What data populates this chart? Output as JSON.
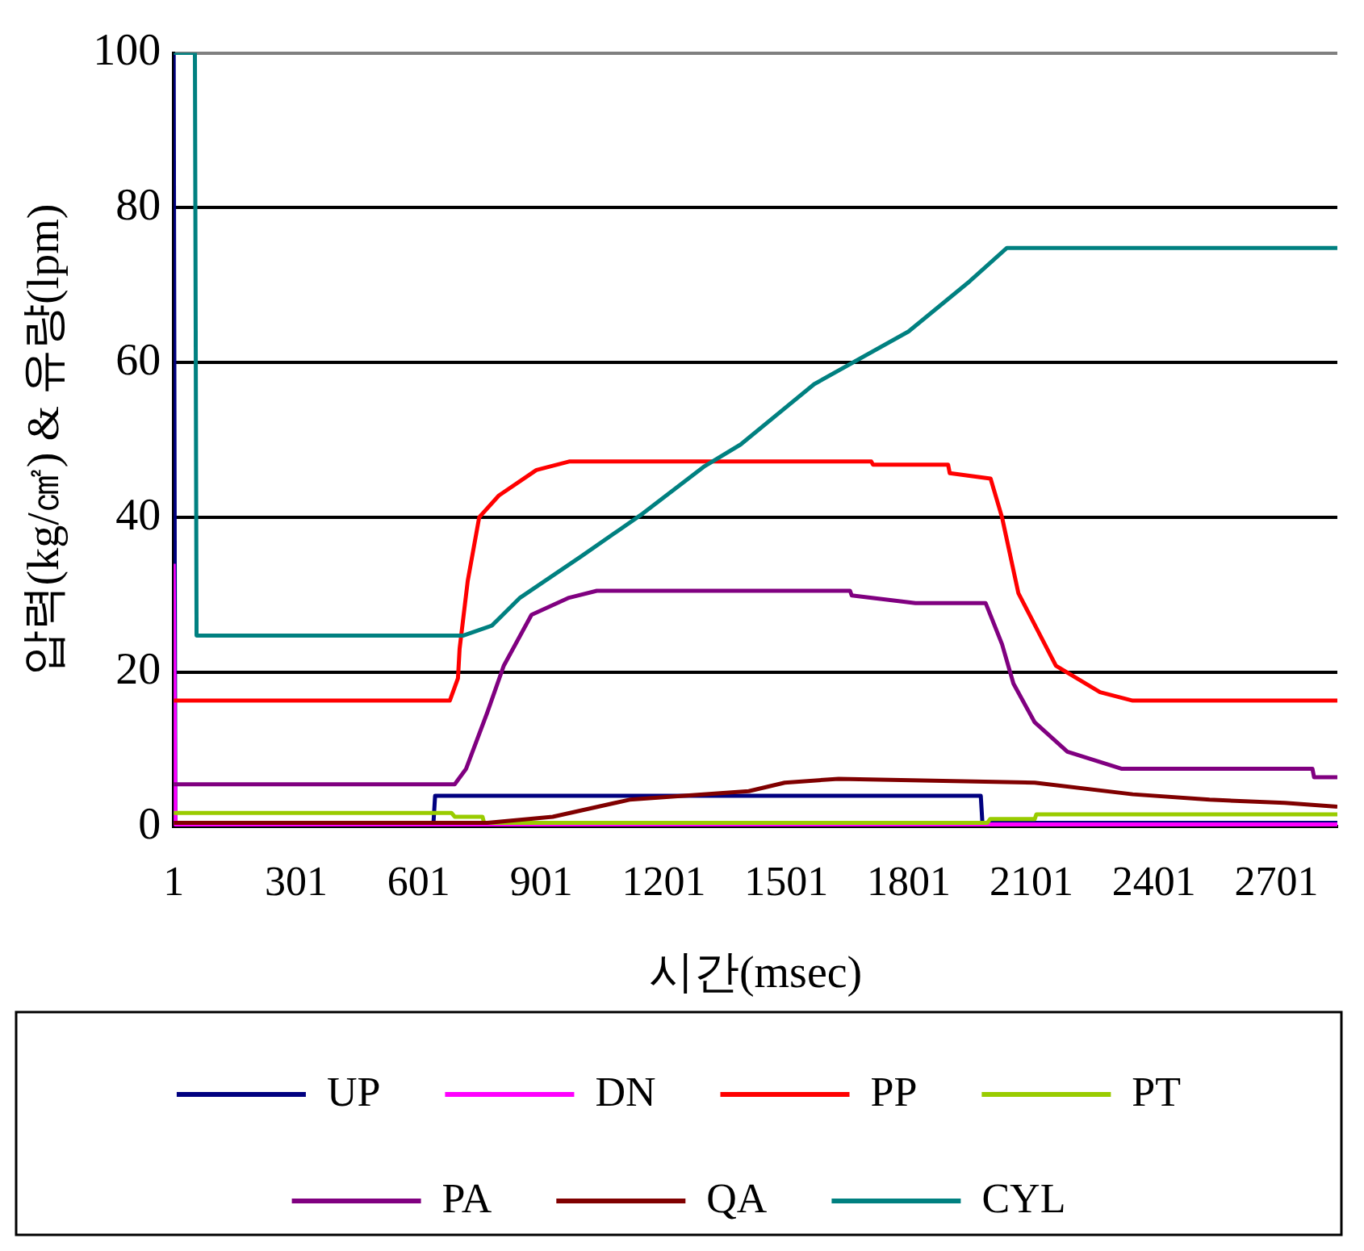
{
  "chart_data": {
    "type": "line",
    "xlabel": "시간(msec)",
    "ylabel": "압력(kg/㎠) & 유량(lpm)",
    "xlim": [
      1,
      2850
    ],
    "xticks": [
      1,
      301,
      601,
      901,
      1201,
      1501,
      1801,
      2101,
      2401,
      2701
    ],
    "ylim": [
      0,
      100
    ],
    "yticks": [
      0,
      20,
      40,
      60,
      80,
      100
    ],
    "grid": "y",
    "legend": "bottom",
    "marker": "none",
    "line_style": "solid",
    "series": [
      {
        "name": "UP",
        "color": "#000080",
        "x": [
          1,
          5,
          637,
          641,
          1977,
          1981,
          2850
        ],
        "values": [
          100,
          0.5,
          0.5,
          4,
          4,
          0.5,
          0.5
        ]
      },
      {
        "name": "DN",
        "color": "#ff00ff",
        "x": [
          1,
          5,
          2850
        ],
        "values": [
          34,
          0.3,
          0.3
        ]
      },
      {
        "name": "PP",
        "color": "#ff0000",
        "x": [
          1,
          677,
          697,
          701,
          721,
          749,
          797,
          889,
          969,
          1709,
          1713,
          1897,
          1901,
          2001,
          2029,
          2069,
          2161,
          2269,
          2349,
          2850
        ],
        "values": [
          16.3,
          16.3,
          19.2,
          23,
          31.8,
          40,
          42.8,
          46.1,
          47.2,
          47.2,
          46.8,
          46.8,
          45.7,
          45,
          40,
          30.2,
          20.8,
          17.4,
          16.3,
          16.3
        ]
      },
      {
        "name": "PT",
        "color": "#99cc00",
        "x": [
          1,
          681,
          689,
          757,
          761,
          1993,
          2000,
          2109,
          2113,
          2850
        ],
        "values": [
          1.8,
          1.8,
          1.3,
          1.3,
          0.5,
          0.5,
          1,
          1,
          1.6,
          1.6
        ]
      },
      {
        "name": "PA",
        "color": "#800080",
        "x": [
          1,
          689,
          717,
          769,
          809,
          877,
          969,
          1037,
          1657,
          1661,
          1817,
          1989,
          2029,
          2057,
          2109,
          2189,
          2321,
          2789,
          2793,
          2850
        ],
        "values": [
          5.5,
          5.5,
          7.5,
          14.8,
          20.8,
          27.4,
          29.6,
          30.5,
          30.5,
          29.9,
          28.9,
          28.9,
          23.6,
          18.5,
          13.5,
          9.7,
          7.5,
          7.5,
          6.4,
          6.4
        ]
      },
      {
        "name": "QA",
        "color": "#800000",
        "x": [
          1,
          769,
          929,
          1117,
          1409,
          1497,
          1629,
          2109,
          2349,
          2537,
          2721,
          2850
        ],
        "values": [
          0.5,
          0.5,
          1.3,
          3.5,
          4.6,
          5.7,
          6.2,
          5.7,
          4.2,
          3.5,
          3.1,
          2.6
        ]
      },
      {
        "name": "CYL",
        "color": "#008080",
        "x": [
          1,
          53,
          57,
          709,
          780,
          849,
          1000,
          1150,
          1301,
          1389,
          1569,
          1800,
          1950,
          2041,
          2850
        ],
        "values": [
          100,
          100,
          24.7,
          24.7,
          26,
          29.6,
          35,
          40.5,
          46.6,
          49.4,
          57.2,
          64,
          70.5,
          74.8,
          74.8
        ]
      }
    ]
  }
}
